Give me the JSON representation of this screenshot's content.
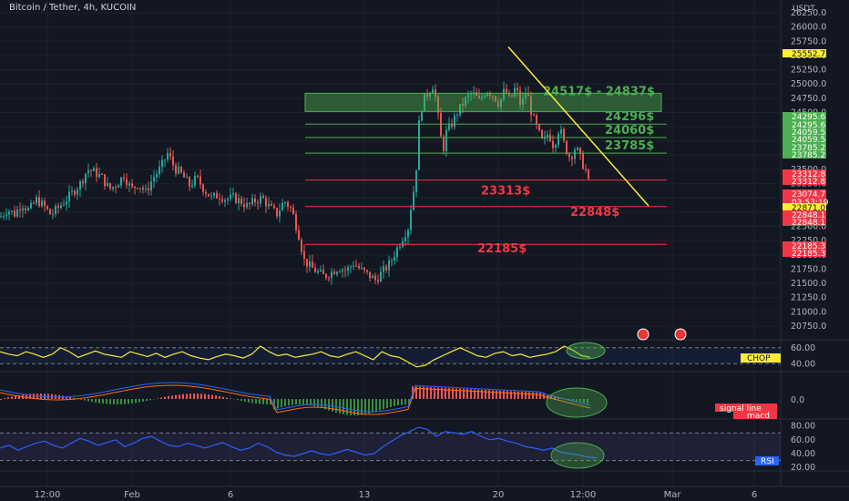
{
  "header": {
    "title": "Bitcoin / Tether, 4h, KUCOIN",
    "currency": "USDT"
  },
  "colors": {
    "background": "#131722",
    "bull": "#26a69a",
    "bear": "#ef5350",
    "resistance_green": "#4caf50",
    "support_red": "#f23645",
    "trendline": "#ffeb3b",
    "chop": "#ffeb3b",
    "rsi": "#2962ff",
    "macd_line": "#2962ff",
    "signal_line": "#ff6d00"
  },
  "chart_data": [
    {
      "type": "candlestick",
      "title": "Bitcoin / Tether, 4h, KUCOIN",
      "ylim": [
        20750,
        26300
      ],
      "y_ticks": [
        "20750.0",
        "21000.0",
        "21250.0",
        "21500.0",
        "21750.0",
        "22000.0",
        "22250.0",
        "22500.0",
        "22750.0",
        "23000.0",
        "23250.0",
        "23500.0",
        "23750.0",
        "24000.0",
        "24250.0",
        "24500.0",
        "24750.0",
        "25000.0",
        "25250.0",
        "25500.0",
        "25750.0",
        "26000.0",
        "26250.0"
      ],
      "x_ticks": [
        "12:00",
        "Feb",
        "6",
        "13",
        "20",
        "12:00",
        "Mar",
        "6"
      ],
      "close_path": [
        [
          0,
          22660
        ],
        [
          8,
          22800
        ],
        [
          16,
          22720
        ],
        [
          24,
          22900
        ],
        [
          32,
          22780
        ],
        [
          40,
          22970
        ],
        [
          48,
          22860
        ],
        [
          56,
          22700
        ],
        [
          64,
          22830
        ],
        [
          72,
          22960
        ],
        [
          80,
          23100
        ],
        [
          88,
          23250
        ],
        [
          96,
          23500
        ],
        [
          104,
          23450
        ],
        [
          112,
          23360
        ],
        [
          120,
          23150
        ],
        [
          128,
          23240
        ],
        [
          136,
          23400
        ],
        [
          144,
          23150
        ],
        [
          152,
          23250
        ],
        [
          160,
          23100
        ],
        [
          168,
          23350
        ],
        [
          176,
          23520
        ],
        [
          184,
          23780
        ],
        [
          192,
          23520
        ],
        [
          200,
          23400
        ],
        [
          208,
          23220
        ],
        [
          216,
          23350
        ],
        [
          224,
          23150
        ],
        [
          232,
          23000
        ],
        [
          240,
          23050
        ],
        [
          248,
          22980
        ],
        [
          256,
          23000
        ],
        [
          264,
          22940
        ],
        [
          272,
          22850
        ],
        [
          280,
          22950
        ],
        [
          288,
          23000
        ],
        [
          296,
          22830
        ],
        [
          304,
          22720
        ],
        [
          312,
          22950
        ],
        [
          320,
          22800
        ],
        [
          328,
          22350
        ],
        [
          334,
          21900
        ],
        [
          340,
          21800
        ],
        [
          348,
          21700
        ],
        [
          356,
          21620
        ],
        [
          364,
          21700
        ],
        [
          372,
          21780
        ],
        [
          380,
          21720
        ],
        [
          388,
          21850
        ],
        [
          396,
          21740
        ],
        [
          404,
          21650
        ],
        [
          412,
          21560
        ],
        [
          420,
          21700
        ],
        [
          428,
          21850
        ],
        [
          434,
          22050
        ],
        [
          440,
          22250
        ],
        [
          448,
          22480
        ],
        [
          452,
          22950
        ],
        [
          456,
          23300
        ],
        [
          460,
          24300
        ],
        [
          464,
          24700
        ],
        [
          470,
          24850
        ],
        [
          476,
          25000
        ],
        [
          482,
          24300
        ],
        [
          486,
          23800
        ],
        [
          490,
          24150
        ],
        [
          496,
          24300
        ],
        [
          502,
          24500
        ],
        [
          510,
          24700
        ],
        [
          518,
          24850
        ],
        [
          526,
          24700
        ],
        [
          534,
          24900
        ],
        [
          542,
          24800
        ],
        [
          548,
          24650
        ],
        [
          554,
          24900
        ],
        [
          560,
          24700
        ],
        [
          566,
          24950
        ],
        [
          572,
          24600
        ],
        [
          578,
          24900
        ],
        [
          584,
          24450
        ],
        [
          590,
          24200
        ],
        [
          596,
          23950
        ],
        [
          602,
          24150
        ],
        [
          608,
          23900
        ],
        [
          614,
          24250
        ],
        [
          620,
          23900
        ],
        [
          626,
          23700
        ],
        [
          632,
          23900
        ],
        [
          638,
          23650
        ],
        [
          644,
          23450
        ],
        [
          648,
          23075
        ]
      ],
      "last_price": "23074.7",
      "countdown": "03:53:19",
      "price_labels": [
        "25552.7",
        "24295.6",
        "24295.6",
        "24059.5",
        "24059.5",
        "23785.2",
        "23785.2",
        "23312.8",
        "23312.8",
        "22871.0",
        "22848.1",
        "22848.1",
        "22185.3",
        "22185.3"
      ],
      "levels": [
        {
          "label": "24296$",
          "value": 24296,
          "color": "#4caf50"
        },
        {
          "label": "24060$",
          "value": 24060,
          "color": "#4caf50"
        },
        {
          "label": "23785$",
          "value": 23785,
          "color": "#4caf50"
        },
        {
          "label": "23313$",
          "value": 23313,
          "color": "#f23645"
        },
        {
          "label": "22848$",
          "value": 22848,
          "color": "#f23645"
        },
        {
          "label": "22185$",
          "value": 22185,
          "color": "#f23645"
        }
      ],
      "zone": {
        "label": "24517$ - 24837$",
        "low": 24517,
        "high": 24837
      },
      "trendline": [
        {
          "bar_x": 558,
          "price": 25650
        },
        {
          "bar_x": 712,
          "price": 22860
        }
      ]
    },
    {
      "type": "line",
      "name": "CHOP",
      "y_ticks": [
        "60.00",
        "40.00"
      ],
      "ylim": [
        30,
        70
      ],
      "values": [
        55,
        52,
        50,
        55,
        52,
        48,
        52,
        60,
        55,
        48,
        52,
        56,
        52,
        50,
        48,
        55,
        52,
        49,
        53,
        48,
        52,
        55,
        50,
        47,
        45,
        49,
        52,
        50,
        47,
        52,
        62,
        55,
        50,
        52,
        48,
        50,
        52,
        55,
        50,
        48,
        52,
        55,
        50,
        45,
        55,
        50,
        48,
        42,
        36,
        38,
        45,
        50,
        55,
        60,
        55,
        50,
        48,
        53,
        55,
        50,
        52,
        48,
        50,
        52,
        55,
        62,
        57,
        50,
        48
      ]
    },
    {
      "type": "histogram",
      "name": "MACD",
      "y_ticks": [
        "0.0"
      ],
      "legend": [
        "signal line",
        "macd"
      ]
    },
    {
      "type": "line",
      "name": "RSI",
      "y_ticks": [
        "80.00",
        "60.00",
        "40.00",
        "20.00"
      ],
      "ylim": [
        15,
        90
      ],
      "values": [
        48,
        52,
        45,
        50,
        55,
        58,
        52,
        48,
        55,
        62,
        58,
        52,
        56,
        60,
        50,
        55,
        62,
        65,
        58,
        52,
        50,
        55,
        52,
        48,
        52,
        56,
        50,
        45,
        48,
        55,
        50,
        42,
        38,
        36,
        40,
        44,
        40,
        38,
        42,
        46,
        42,
        38,
        40,
        50,
        58,
        66,
        72,
        78,
        75,
        65,
        72,
        70,
        68,
        72,
        65,
        60,
        62,
        58,
        55,
        50,
        48,
        45,
        48,
        42,
        40,
        38,
        35,
        34
      ]
    }
  ]
}
